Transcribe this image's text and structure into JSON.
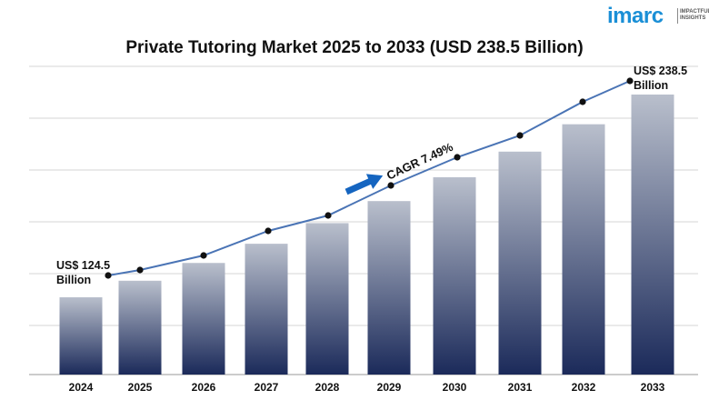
{
  "brand": {
    "logo_text": "imarc",
    "logo_sub": "IMPACTFUL INSIGHTS",
    "logo_color": "#1a8fd6"
  },
  "chart_data": {
    "type": "bar",
    "title": "Private Tutoring Market 2025 to 2033 (USD 238.5 Billion)",
    "xlabel": "",
    "ylabel": "",
    "categories": [
      "2024",
      "2025",
      "2026",
      "2027",
      "2028",
      "2029",
      "2030",
      "2031",
      "2032",
      "2033"
    ],
    "values": [
      124.5,
      133.8,
      143.8,
      154.6,
      166.2,
      178.6,
      192.0,
      206.4,
      221.8,
      238.5
    ],
    "ylim": [
      0,
      250
    ],
    "grid": true,
    "trend_line": true,
    "annotations": {
      "start_label": "US$ 124.5\nBillion",
      "end_label": "US$ 238.5\nBillion",
      "cagr_label": "CAGR 7.49%"
    },
    "colors": {
      "bar_top": "#b9bfcc",
      "bar_bottom": "#1b2a5a",
      "line": "#4a74b5",
      "marker": "#111111",
      "arrow": "#1565c0"
    }
  }
}
